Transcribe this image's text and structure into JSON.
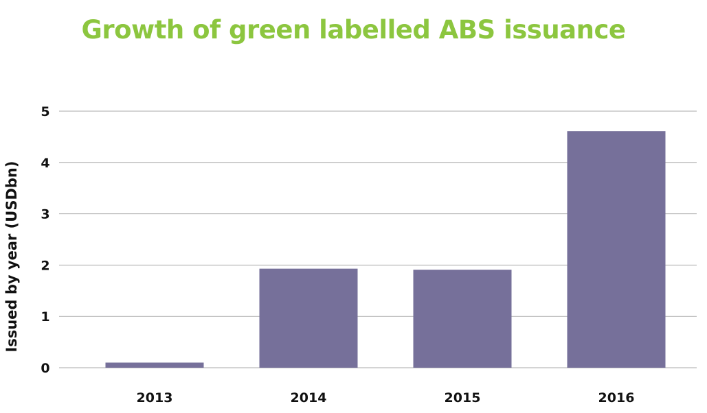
{
  "chart_data": {
    "type": "bar",
    "title": "Growth of green labelled ABS issuance",
    "xlabel": "",
    "ylabel": "Issued by year (USDbn)",
    "categories": [
      "2013",
      "2014",
      "2015",
      "2016"
    ],
    "values": [
      0.1,
      1.93,
      1.91,
      4.61
    ],
    "ylim": [
      0,
      5
    ],
    "yticks": [
      "0",
      "1",
      "2",
      "3",
      "4",
      "5"
    ],
    "grid": true,
    "legend": "none",
    "colors": {
      "title": "#8cc63f",
      "bar": "#76709a",
      "grid": "#a9a9a9"
    }
  }
}
